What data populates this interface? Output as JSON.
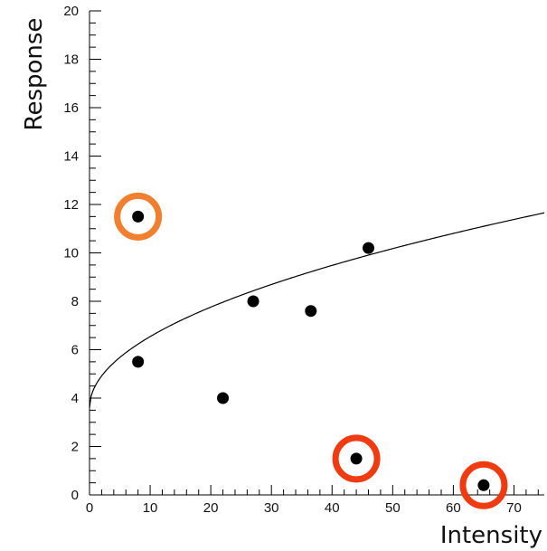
{
  "chart_data": {
    "type": "scatter",
    "title": "",
    "xlabel": "Intensity",
    "ylabel": "Response",
    "xlim": [
      0,
      75
    ],
    "ylim": [
      0,
      20
    ],
    "grid": false,
    "x_ticks": [
      0,
      10,
      20,
      30,
      40,
      50,
      60,
      70
    ],
    "y_ticks": [
      0,
      2,
      4,
      6,
      8,
      10,
      12,
      14,
      16,
      18,
      20
    ],
    "points": [
      {
        "x": 8,
        "y": 11.5
      },
      {
        "x": 8,
        "y": 5.5
      },
      {
        "x": 22,
        "y": 4.0
      },
      {
        "x": 27,
        "y": 8.0
      },
      {
        "x": 36.5,
        "y": 7.6
      },
      {
        "x": 44,
        "y": 1.5
      },
      {
        "x": 46,
        "y": 10.2
      },
      {
        "x": 65,
        "y": 0.4
      }
    ],
    "fit_curve": {
      "form": "a + b*sqrt(x)",
      "a": 3.6,
      "b": 0.93
    },
    "highlighted_points": [
      {
        "x": 8,
        "y": 11.5,
        "color": "#f08030"
      },
      {
        "x": 44,
        "y": 1.5,
        "color": "#f03a10"
      },
      {
        "x": 65,
        "y": 0.4,
        "color": "#f03a10"
      }
    ],
    "colors": {
      "points": "#000000",
      "curve": "#000000",
      "axes": "#000000"
    }
  }
}
